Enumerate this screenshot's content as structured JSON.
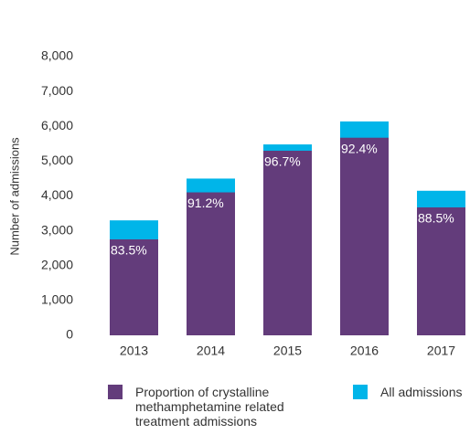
{
  "chart_data": {
    "type": "bar",
    "y_label": "Number of admissions",
    "categories": [
      "2013",
      "2014",
      "2015",
      "2016",
      "2017"
    ],
    "series": [
      {
        "name": "All admissions",
        "color": "#00b5e9",
        "values": [
          3300,
          4500,
          5480,
          6140,
          4150
        ]
      },
      {
        "name": "Proportion of crystalline methamphetamine related treatment admissions",
        "color": "#633c7b",
        "values": [
          2755,
          4104,
          5299,
          5673,
          3673
        ]
      }
    ],
    "annotations": [
      "83.5%",
      "91.2%",
      "96.7%",
      "92.4%",
      "88.5%"
    ],
    "ylim": [
      0,
      8000
    ],
    "yticks": [
      {
        "value": 0,
        "label": "0"
      },
      {
        "value": 1000,
        "label": "1,000"
      },
      {
        "value": 2000,
        "label": "2,000"
      },
      {
        "value": 3000,
        "label": "3,000"
      },
      {
        "value": 4000,
        "label": "4,000"
      },
      {
        "value": 5000,
        "label": "5,000"
      },
      {
        "value": 6000,
        "label": "6,000"
      },
      {
        "value": 7000,
        "label": "7,000"
      },
      {
        "value": 8000,
        "label": "8,000"
      }
    ],
    "grid": false
  }
}
